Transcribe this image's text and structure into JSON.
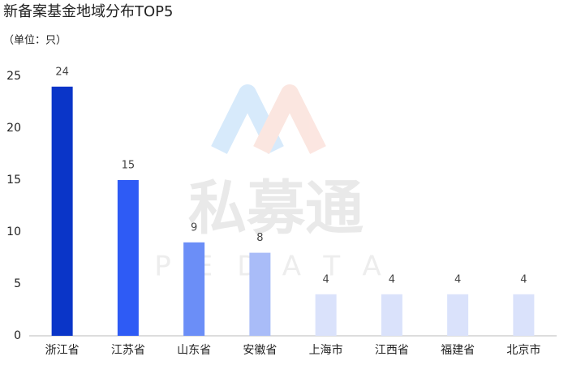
{
  "chart_data": {
    "type": "bar",
    "title": "新备案基金地域分布TOP5",
    "subtitle": "（单位：只）",
    "watermark": "私募通",
    "watermark_sub": "PEDATA",
    "categories": [
      "浙江省",
      "江苏省",
      "山东省",
      "安徽省",
      "上海市",
      "江西省",
      "福建省",
      "北京市"
    ],
    "values": [
      24,
      15,
      9,
      8,
      4,
      4,
      4,
      4
    ],
    "colors": [
      "#0a35c8",
      "#2e5bf5",
      "#6b8ef7",
      "#a9bcf8",
      "#dae2fb",
      "#dae2fb",
      "#dae2fb",
      "#dae2fb"
    ],
    "ylim": [
      0,
      25
    ],
    "yticks": [
      0,
      5,
      10,
      15,
      20,
      25
    ],
    "grid": false
  }
}
